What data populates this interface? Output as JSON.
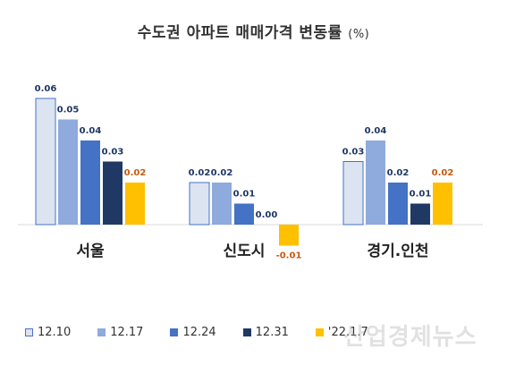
{
  "title": "수도권 아파트 매매가격 변동률",
  "title_unit": "(%)",
  "watermark": "산업경제뉴스",
  "chart_data": {
    "type": "bar",
    "title": "수도권 아파트 매매가격 변동률 (%)",
    "xlabel": "",
    "ylabel": "",
    "ylim": [
      -0.01,
      0.06
    ],
    "grid": false,
    "legend_position": "bottom",
    "categories": [
      "서울",
      "신도시",
      "경기.인천"
    ],
    "series": [
      {
        "name": "12.10",
        "values": [
          0.06,
          0.02,
          0.03
        ],
        "labels": [
          "0.06",
          "0.02",
          "0.03"
        ],
        "color": "#dce4f2",
        "stroke": "#4472c4"
      },
      {
        "name": "12.17",
        "values": [
          0.05,
          0.02,
          0.04
        ],
        "labels": [
          "0.05",
          "0.02",
          "0.04"
        ],
        "color": "#8faadc",
        "stroke": "#4472c4"
      },
      {
        "name": "12.24",
        "values": [
          0.04,
          0.01,
          0.02
        ],
        "labels": [
          "0.04",
          "0.01",
          "0.02"
        ],
        "color": "#4472c4",
        "stroke": "#4472c4"
      },
      {
        "name": "12.31",
        "values": [
          0.03,
          0.0,
          0.01
        ],
        "labels": [
          "0.03",
          "0.00",
          "0.01"
        ],
        "color": "#203864",
        "stroke": "#203864"
      },
      {
        "name": "'22.1.7",
        "values": [
          0.02,
          -0.01,
          0.02
        ],
        "labels": [
          "0.02",
          "-0.01",
          "0.02"
        ],
        "color": "#ffc000",
        "stroke": "#ffc000"
      }
    ],
    "colors": {
      "label_default": "#203864",
      "label_highlight": "#c55a11",
      "axis": "#d9d9d9",
      "category_text": "#222222"
    }
  }
}
